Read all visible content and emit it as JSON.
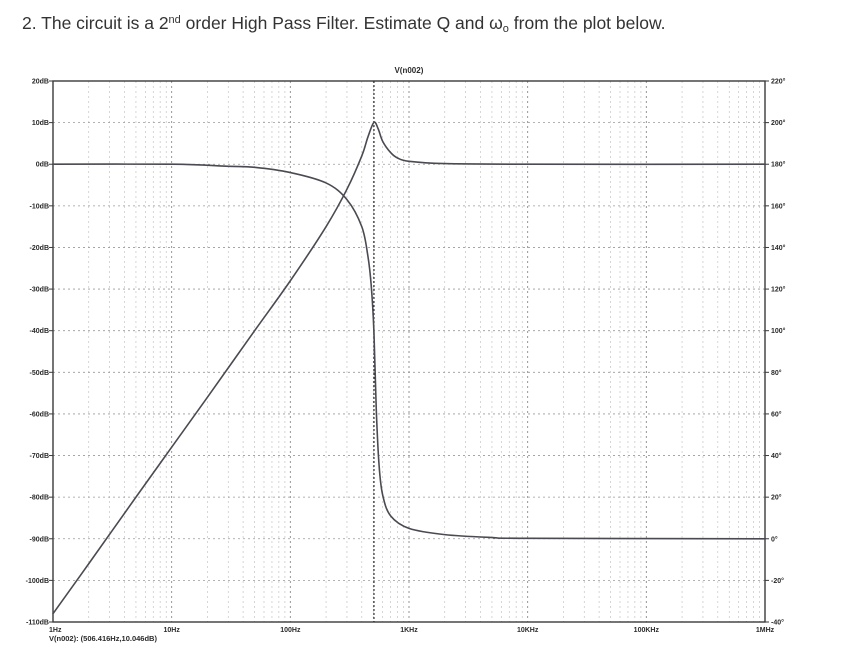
{
  "question": {
    "prefix": "2. The circuit is a 2",
    "superscript": "nd",
    "middle": " order High Pass Filter. Estimate Q and ω",
    "subscript": "o",
    "suffix": " from the plot below."
  },
  "chart_data": {
    "type": "line",
    "title": "V(n002)",
    "xlabel": "",
    "ylabel": "",
    "x_scale": "log",
    "xlim": [
      1,
      1000000
    ],
    "ylim_left": [
      -110,
      20
    ],
    "ylim_right": [
      -40,
      220
    ],
    "left_axis_unit": "dB",
    "right_axis_unit": "degrees",
    "x_tick_labels": [
      {
        "x": 1,
        "label": "1Hz"
      },
      {
        "x": 10,
        "label": "10Hz"
      },
      {
        "x": 100,
        "label": "100Hz"
      },
      {
        "x": 1000,
        "label": "1KHz"
      },
      {
        "x": 10000,
        "label": "10KHz"
      },
      {
        "x": 100000,
        "label": "100KHz"
      },
      {
        "x": 1000000,
        "label": "1MHz"
      }
    ],
    "y_left_tick_labels": [
      {
        "y": 20,
        "label": "20dB"
      },
      {
        "y": 10,
        "label": "10dB"
      },
      {
        "y": 0,
        "label": "0dB"
      },
      {
        "y": -10,
        "label": "-10dB"
      },
      {
        "y": -20,
        "label": "-20dB"
      },
      {
        "y": -30,
        "label": "-30dB"
      },
      {
        "y": -40,
        "label": "-40dB"
      },
      {
        "y": -50,
        "label": "-50dB"
      },
      {
        "y": -60,
        "label": "-60dB"
      },
      {
        "y": -70,
        "label": "-70dB"
      },
      {
        "y": -80,
        "label": "-80dB"
      },
      {
        "y": -90,
        "label": "-90dB"
      },
      {
        "y": -100,
        "label": "-100dB"
      },
      {
        "y": -110,
        "label": "-110dB"
      }
    ],
    "y_right_tick_labels": [
      {
        "y": 220,
        "label": "220°"
      },
      {
        "y": 200,
        "label": "200°"
      },
      {
        "y": 180,
        "label": "180°"
      },
      {
        "y": 160,
        "label": "160°"
      },
      {
        "y": 140,
        "label": "140°"
      },
      {
        "y": 120,
        "label": "120°"
      },
      {
        "y": 100,
        "label": "100°"
      },
      {
        "y": 80,
        "label": "80°"
      },
      {
        "y": 60,
        "label": "60°"
      },
      {
        "y": 40,
        "label": "40°"
      },
      {
        "y": 20,
        "label": "20°"
      },
      {
        "y": 0,
        "label": "0°"
      },
      {
        "y": -20,
        "label": "-20°"
      },
      {
        "y": -40,
        "label": "-40°"
      }
    ],
    "grid": true,
    "cursor": {
      "x": 506.416,
      "y": 10.046,
      "label": "V(n002): (506.416Hz,10.046dB)"
    },
    "series": [
      {
        "axis": "left",
        "color": "#4a4a52",
        "points": [
          [
            1,
            -108
          ],
          [
            2,
            -96
          ],
          [
            5,
            -80
          ],
          [
            10,
            -68
          ],
          [
            20,
            -56
          ],
          [
            50,
            -40
          ],
          [
            100,
            -28
          ],
          [
            200,
            -15
          ],
          [
            300,
            -6
          ],
          [
            400,
            2
          ],
          [
            450,
            6.5
          ],
          [
            506.416,
            10.046
          ],
          [
            550,
            8.5
          ],
          [
            600,
            5.5
          ],
          [
            700,
            2.8
          ],
          [
            800,
            1.5
          ],
          [
            1000,
            0.7
          ],
          [
            2000,
            0.15
          ],
          [
            10000,
            0
          ],
          [
            1000000,
            0
          ]
        ]
      },
      {
        "axis": "right",
        "color": "#4a4a52",
        "points": [
          [
            1,
            180
          ],
          [
            10,
            180
          ],
          [
            30,
            179
          ],
          [
            50,
            178.5
          ],
          [
            100,
            176
          ],
          [
            200,
            171
          ],
          [
            300,
            163
          ],
          [
            400,
            150
          ],
          [
            450,
            136
          ],
          [
            480,
            122
          ],
          [
            506,
            100
          ],
          [
            530,
            62
          ],
          [
            560,
            35
          ],
          [
            600,
            21
          ],
          [
            700,
            11
          ],
          [
            1000,
            5
          ],
          [
            2000,
            2
          ],
          [
            5000,
            0.6
          ],
          [
            10000,
            0.2
          ],
          [
            1000000,
            0
          ]
        ]
      }
    ]
  }
}
